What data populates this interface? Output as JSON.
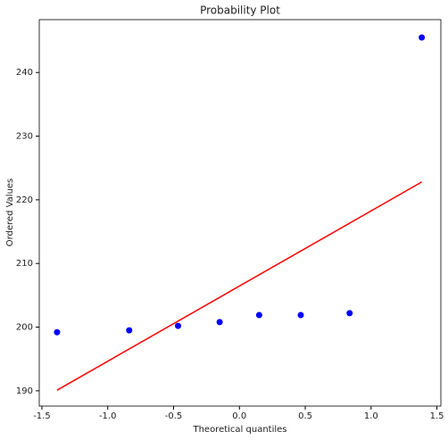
{
  "chart_data": {
    "type": "scatter",
    "title": "Probability Plot",
    "x_label": "Theoretical quantiles",
    "y_label": "Ordered Values",
    "series": [
      {
        "type": "scatter",
        "color": "#0000ff",
        "x": [
          -1.385,
          -0.837,
          -0.466,
          -0.15,
          0.15,
          0.466,
          0.837,
          1.385
        ],
        "y": [
          199.2,
          199.5,
          200.2,
          200.8,
          201.9,
          201.9,
          202.2,
          245.5
        ]
      },
      {
        "type": "line",
        "color": "#ff0000",
        "x": [
          -1.385,
          1.385
        ],
        "y": [
          190.1,
          222.8
        ]
      }
    ],
    "xlim": [
      -1.52,
      1.53
    ],
    "ylim": [
      187.6,
      248.3
    ],
    "xticks": [
      -1.5,
      {
        "value": -1.0,
        "label": "-1.0"
      },
      -0.5,
      {
        "value": 0.0,
        "label": "0.0"
      },
      0.5,
      {
        "value": 1.0,
        "label": "1.0"
      },
      1.5
    ],
    "yticks": [
      190,
      200,
      210,
      220,
      230,
      240
    ]
  }
}
